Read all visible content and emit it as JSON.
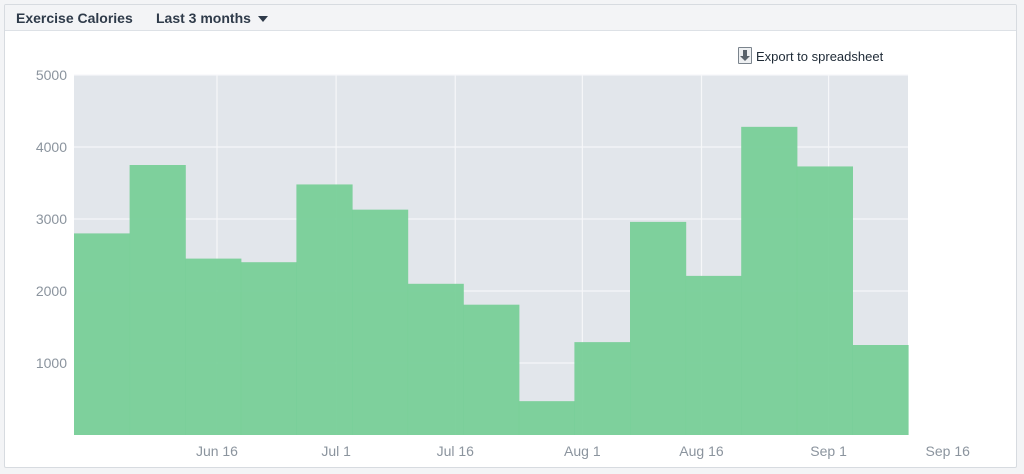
{
  "header": {
    "title": "Exercise Calories",
    "range_label": "Last 3 months"
  },
  "export": {
    "label": "Export to spreadsheet",
    "icon": "download-document-icon"
  },
  "colors": {
    "plot_background": "#e2e6eb",
    "bar_fill": "#78cf98",
    "gridline": "#f6f7f9",
    "tick_text": "#8b949e"
  },
  "chart_data": {
    "type": "bar",
    "title": "",
    "xlabel": "",
    "ylabel": "",
    "ylim": [
      0,
      5000
    ],
    "yticks": [
      1000,
      2000,
      3000,
      4000,
      5000
    ],
    "grid": true,
    "bar_style": "contiguous weekly step",
    "categories": [
      "2024-05-29",
      "2024-06-05",
      "2024-06-12",
      "2024-06-19",
      "2024-06-26",
      "2024-07-03",
      "2024-07-10",
      "2024-07-17",
      "2024-07-24",
      "2024-07-31",
      "2024-08-07",
      "2024-08-14",
      "2024-08-21",
      "2024-08-28",
      "2024-09-04"
    ],
    "values": [
      2800,
      3750,
      2450,
      2400,
      3480,
      3130,
      2100,
      1810,
      470,
      1290,
      2960,
      2210,
      4280,
      3730,
      1250
    ],
    "xticks": [
      {
        "label": "Jun 16",
        "date": "2024-06-16"
      },
      {
        "label": "Jul 1",
        "date": "2024-07-01"
      },
      {
        "label": "Jul 16",
        "date": "2024-07-16"
      },
      {
        "label": "Aug 1",
        "date": "2024-08-01"
      },
      {
        "label": "Aug 16",
        "date": "2024-08-16"
      },
      {
        "label": "Sep 1",
        "date": "2024-09-01"
      },
      {
        "label": "Sep 16",
        "date": "2024-09-16"
      }
    ]
  }
}
